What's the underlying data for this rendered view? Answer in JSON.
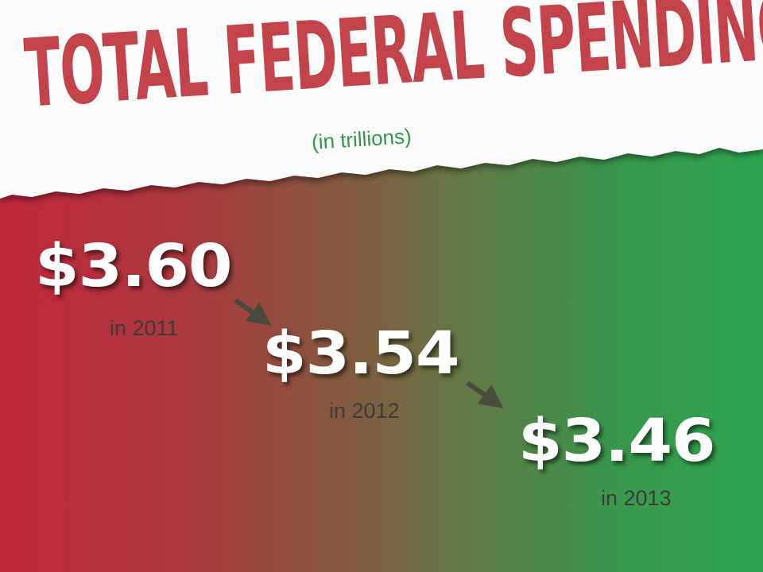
{
  "header": {
    "title": "TOTAL FEDERAL SPENDING",
    "subtitle": "(in trillions)"
  },
  "items": [
    {
      "amount": "$3.60",
      "year": "in 2011"
    },
    {
      "amount": "$3.54",
      "year": "in 2012"
    },
    {
      "amount": "$3.46",
      "year": "in 2013"
    }
  ]
}
